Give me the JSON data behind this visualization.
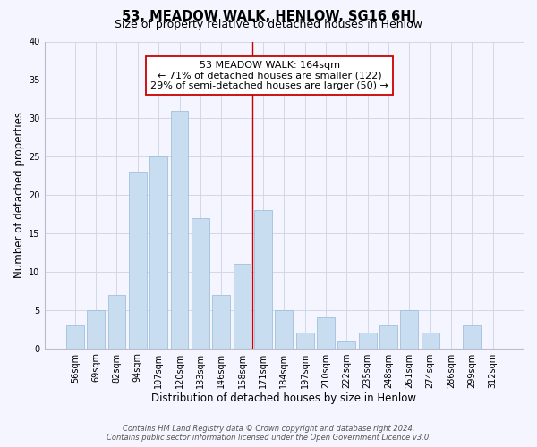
{
  "title": "53, MEADOW WALK, HENLOW, SG16 6HJ",
  "subtitle": "Size of property relative to detached houses in Henlow",
  "xlabel": "Distribution of detached houses by size in Henlow",
  "ylabel": "Number of detached properties",
  "bar_labels": [
    "56sqm",
    "69sqm",
    "82sqm",
    "94sqm",
    "107sqm",
    "120sqm",
    "133sqm",
    "146sqm",
    "158sqm",
    "171sqm",
    "184sqm",
    "197sqm",
    "210sqm",
    "222sqm",
    "235sqm",
    "248sqm",
    "261sqm",
    "274sqm",
    "286sqm",
    "299sqm",
    "312sqm"
  ],
  "bar_values": [
    3,
    5,
    7,
    23,
    25,
    31,
    17,
    7,
    11,
    18,
    5,
    2,
    4,
    1,
    2,
    3,
    5,
    2,
    0,
    3,
    0
  ],
  "bar_color": "#c8ddf0",
  "bar_edge_color": "#a0c0dc",
  "vline_x": 8.5,
  "vline_color": "#cc0000",
  "annotation_title": "53 MEADOW WALK: 164sqm",
  "annotation_line1": "← 71% of detached houses are smaller (122)",
  "annotation_line2": "29% of semi-detached houses are larger (50) →",
  "annotation_box_color": "#ffffff",
  "annotation_box_edge": "#cc0000",
  "ylim": [
    0,
    40
  ],
  "yticks": [
    0,
    5,
    10,
    15,
    20,
    25,
    30,
    35,
    40
  ],
  "footnote1": "Contains HM Land Registry data © Crown copyright and database right 2024.",
  "footnote2": "Contains public sector information licensed under the Open Government Licence v3.0.",
  "grid_color": "#d0d8e8",
  "background_color": "#f5f5ff",
  "title_fontsize": 10.5,
  "subtitle_fontsize": 9,
  "axis_label_fontsize": 8.5,
  "tick_fontsize": 7,
  "annotation_fontsize": 8,
  "footnote_fontsize": 6
}
